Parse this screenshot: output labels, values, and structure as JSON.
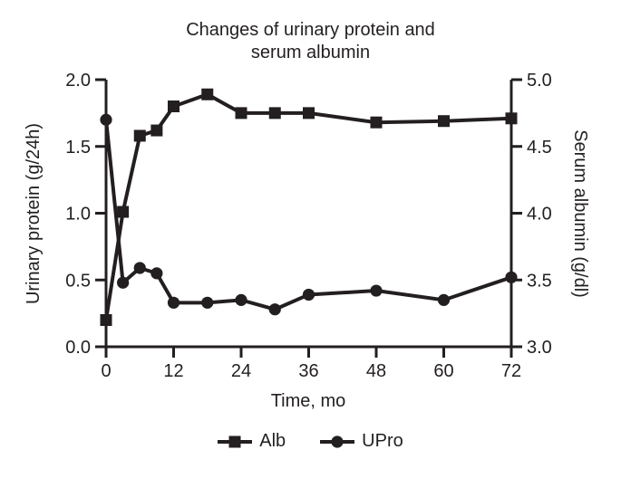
{
  "figure": {
    "title_line1": "Changes of urinary protein and",
    "title_line2": "serum albumin"
  },
  "colors": {
    "line": "#231f20",
    "text": "#231f20",
    "background": "#ffffff"
  },
  "legend": {
    "items": [
      {
        "label": "Alb",
        "marker": "square"
      },
      {
        "label": "UPro",
        "marker": "circle"
      }
    ]
  },
  "chart_data": {
    "type": "line",
    "title": "Changes of urinary protein and serum albumin",
    "xlabel": "Time, mo",
    "ylabel_left": "Urinary protein (g/24h)",
    "ylabel_right": "Serum albumin (g/dl)",
    "x": [
      0,
      3,
      6,
      9,
      12,
      18,
      24,
      30,
      36,
      48,
      60,
      72
    ],
    "series": [
      {
        "name": "Alb",
        "axis": "right",
        "marker": "square",
        "values": [
          3.2,
          4.01,
          4.58,
          4.62,
          4.8,
          4.89,
          4.75,
          4.75,
          4.75,
          4.68,
          4.69,
          4.71
        ]
      },
      {
        "name": "UPro",
        "axis": "left",
        "marker": "circle",
        "values": [
          1.7,
          0.48,
          0.59,
          0.55,
          0.33,
          0.33,
          0.35,
          0.28,
          0.39,
          0.42,
          0.35,
          0.52
        ]
      }
    ],
    "xlim": [
      0,
      72
    ],
    "ylim_left": [
      0,
      2
    ],
    "ylim_right": [
      3,
      5
    ],
    "xticks": {
      "values": [
        0,
        12,
        24,
        36,
        48,
        60,
        72
      ],
      "labels": [
        "0",
        "12",
        "24",
        "36",
        "48",
        "60",
        "72"
      ]
    },
    "yticks_left": {
      "values": [
        0,
        0.5,
        1,
        1.5,
        2
      ],
      "labels": [
        "0.0",
        "0.5",
        "1.0",
        "1.5",
        "2.0"
      ]
    },
    "yticks_right": {
      "values": [
        3,
        3.5,
        4,
        4.5,
        5
      ],
      "labels": [
        "3.0",
        "3.5",
        "4.0",
        "4.5",
        "5.0"
      ]
    },
    "grid": false,
    "legend_position": "bottom"
  }
}
